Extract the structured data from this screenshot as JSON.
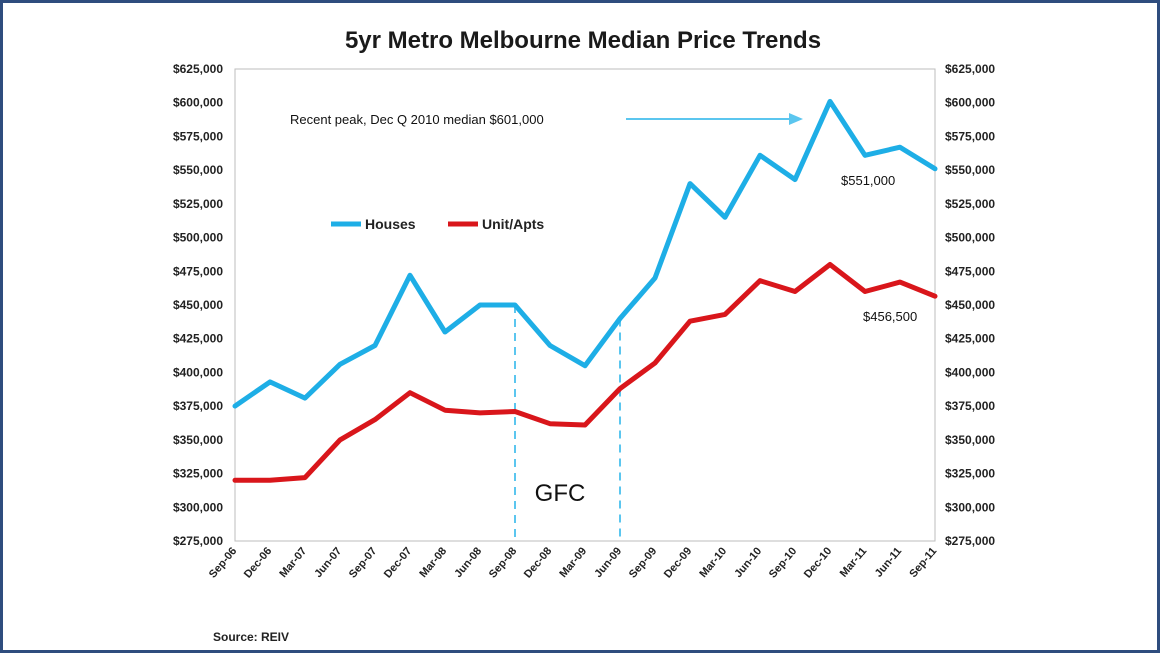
{
  "chart_data": {
    "type": "line",
    "title": "5yr  Metro Melbourne Median Price Trends",
    "categories": [
      "Sep-06",
      "Dec-06",
      "Mar-07",
      "Jun-07",
      "Sep-07",
      "Dec-07",
      "Mar-08",
      "Jun-08",
      "Sep-08",
      "Dec-08",
      "Mar-09",
      "Jun-09",
      "Sep-09",
      "Dec-09",
      "Mar-10",
      "Jun-10",
      "Sep-10",
      "Dec-10",
      "Mar-11",
      "Jun-11",
      "Sep-11"
    ],
    "series": [
      {
        "name": "Houses",
        "color": "#1eaee6",
        "values": [
          375000,
          393000,
          381000,
          406000,
          420000,
          472000,
          430000,
          450000,
          450000,
          420000,
          405000,
          440000,
          470000,
          540000,
          515000,
          561000,
          543000,
          601000,
          561000,
          567000,
          551000
        ]
      },
      {
        "name": "Unit/Apts",
        "color": "#d9161b",
        "values": [
          320000,
          320000,
          322000,
          350000,
          365000,
          385000,
          372000,
          370000,
          371000,
          362000,
          361000,
          388000,
          407000,
          438000,
          443000,
          468000,
          460000,
          480000,
          460000,
          467000,
          456500
        ]
      }
    ],
    "ylim": [
      275000,
      625000
    ],
    "yticks": [
      "$275,000",
      "$300,000",
      "$325,000",
      "$350,000",
      "$375,000",
      "$400,000",
      "$425,000",
      "$450,000",
      "$475,000",
      "$500,000",
      "$525,000",
      "$550,000",
      "$575,000",
      "$600,000",
      "$625,000"
    ],
    "grid": false,
    "legend_position": "upper-left inside",
    "annotations": {
      "peak_note": "Recent peak, Dec Q 2010 median $601,000",
      "houses_end_label": "$551,000",
      "units_end_label": "$456,500",
      "gfc_label": "GFC",
      "gfc_span": [
        "Sep-08",
        "Jun-09"
      ]
    },
    "source": "Source:  REIV"
  }
}
